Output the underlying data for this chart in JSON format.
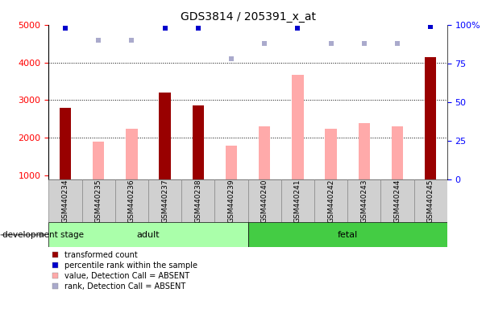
{
  "title": "GDS3814 / 205391_x_at",
  "samples": [
    "GSM440234",
    "GSM440235",
    "GSM440236",
    "GSM440237",
    "GSM440238",
    "GSM440239",
    "GSM440240",
    "GSM440241",
    "GSM440242",
    "GSM440243",
    "GSM440244",
    "GSM440245"
  ],
  "bar_values": [
    2800,
    null,
    null,
    3200,
    2850,
    null,
    null,
    null,
    null,
    null,
    null,
    4150
  ],
  "bar_color": "#990000",
  "pink_values": [
    null,
    1900,
    2250,
    null,
    null,
    1800,
    2300,
    3680,
    2250,
    2380,
    2300,
    null
  ],
  "pink_color": "#ffaaaa",
  "blue_sq_values": [
    98,
    null,
    null,
    98,
    98,
    null,
    null,
    98,
    null,
    null,
    null,
    99
  ],
  "lavender_sq_values": [
    null,
    90,
    90,
    null,
    null,
    78,
    88,
    null,
    88,
    88,
    88,
    null
  ],
  "blue_color": "#0000cc",
  "lavender_color": "#aaaacc",
  "ylim_left": [
    900,
    5000
  ],
  "ylim_right": [
    0,
    100
  ],
  "yticks_left": [
    1000,
    2000,
    3000,
    4000,
    5000
  ],
  "yticks_right": [
    0,
    25,
    50,
    75,
    100
  ],
  "adult_indices": [
    0,
    1,
    2,
    3,
    4,
    5
  ],
  "fetal_indices": [
    6,
    7,
    8,
    9,
    10,
    11
  ],
  "adult_color": "#aaffaa",
  "fetal_color": "#44cc44",
  "dev_stage_label": "development stage",
  "legend_items": [
    {
      "label": "transformed count",
      "color": "#990000"
    },
    {
      "label": "percentile rank within the sample",
      "color": "#0000cc"
    },
    {
      "label": "value, Detection Call = ABSENT",
      "color": "#ffaaaa"
    },
    {
      "label": "rank, Detection Call = ABSENT",
      "color": "#aaaacc"
    }
  ],
  "bar_width": 0.35,
  "sq_size": 18
}
